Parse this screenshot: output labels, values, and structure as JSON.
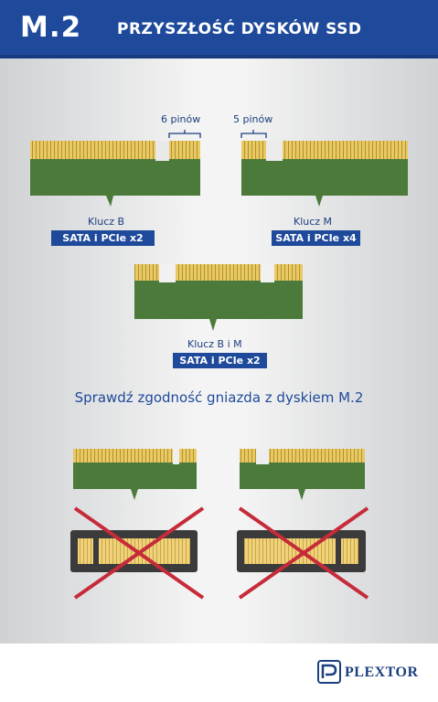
{
  "header": {
    "badge": "M.2",
    "title": "PRZYSZŁOŚĆ DYSKÓW SSD"
  },
  "top_left": {
    "pins_label": "6 pinów",
    "key_label": "Klucz B",
    "interface": "SATA i PCIe x2"
  },
  "top_right": {
    "pins_label": "5 pinów",
    "key_label": "Klucz M",
    "interface": "SATA i PCIe x4"
  },
  "middle": {
    "key_label": "Klucz B i M",
    "interface": "SATA i PCIe x2"
  },
  "hint": "Sprawdź zgodność gniazda z dyskiem M.2",
  "brand": {
    "name": "PLEXTOR"
  },
  "colors": {
    "blue": "#1f4a9b",
    "pcb": "#4b7a3a",
    "gold": "#e3c35c",
    "red_cross": "#c62b3a"
  }
}
